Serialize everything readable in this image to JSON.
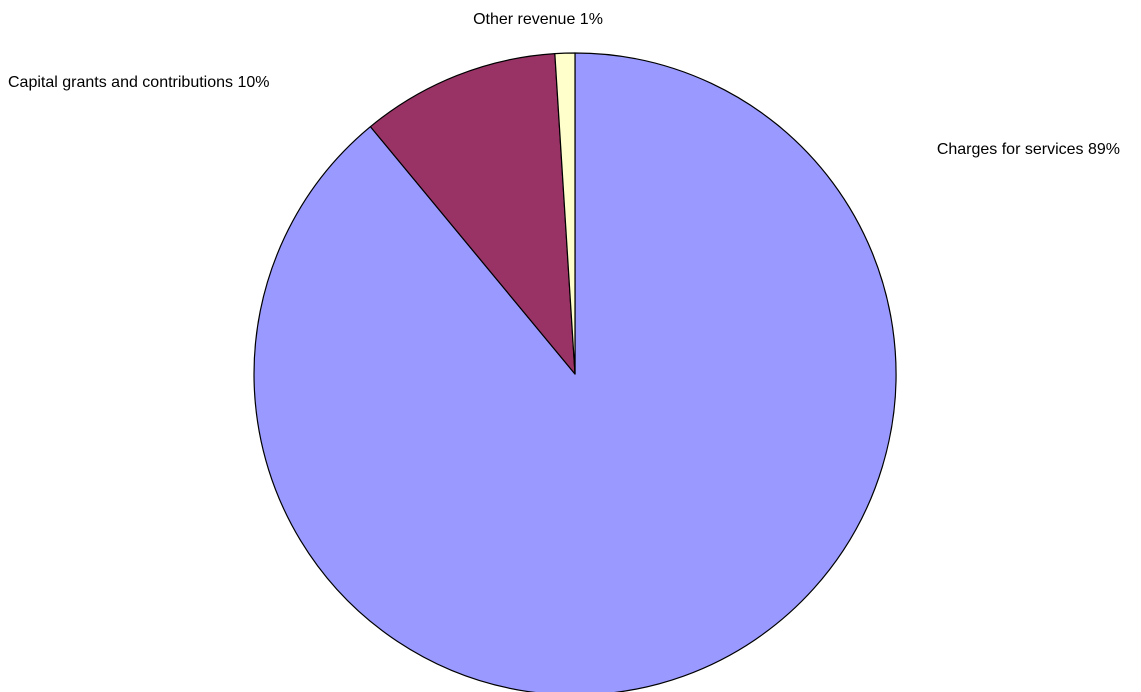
{
  "chart_data": {
    "type": "pie",
    "slices": [
      {
        "label": "Charges for services",
        "value": 89,
        "display": "Charges for services 89%",
        "color": "#9999FF"
      },
      {
        "label": "Capital grants and contributions",
        "value": 10,
        "display": "Capital grants and contributions 10%",
        "color": "#993366"
      },
      {
        "label": "Other revenue",
        "value": 1,
        "display": "Other revenue 1%",
        "color": "#FFFFCC"
      }
    ],
    "start": "12 o'clock",
    "direction": "clockwise"
  }
}
